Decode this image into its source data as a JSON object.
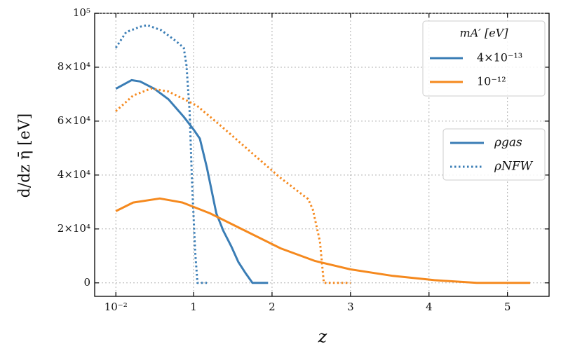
{
  "chart_data": {
    "type": "line",
    "x_label": "z",
    "y_label": "d/dz η̄ [eV]",
    "xlim": [
      -0.26,
      5.53
    ],
    "ylim": [
      -5000,
      100000
    ],
    "xticks": [
      {
        "value": 0.01,
        "label": "10⁻²"
      },
      1,
      2,
      3,
      4,
      5
    ],
    "yticks": [
      0,
      {
        "value": 20000,
        "label": "2×10⁴"
      },
      {
        "value": 40000,
        "label": "4×10⁴"
      },
      {
        "value": 60000,
        "label": "6×10⁴"
      },
      {
        "value": 80000,
        "label": "8×10⁴"
      },
      {
        "value": 100000,
        "label": "10⁵"
      }
    ],
    "grid": true,
    "series": [
      {
        "color": "#3a7db5",
        "dash": "solid",
        "x": [
          0.01,
          0.21,
          0.32,
          0.5,
          0.68,
          0.875,
          1.0,
          1.08,
          1.17,
          1.29,
          1.38,
          1.48,
          1.57,
          1.66,
          1.75,
          1.95
        ],
        "values": [
          72000,
          75200,
          74700,
          72000,
          68100,
          61600,
          56900,
          53500,
          42800,
          25800,
          19300,
          13600,
          7800,
          3700,
          0,
          0
        ]
      },
      {
        "color": "#3a7db5",
        "dash": "dotted",
        "x": [
          0.01,
          0.14,
          0.32,
          0.41,
          0.59,
          0.77,
          0.875,
          0.91,
          0.95,
          0.98,
          1.02,
          1.05,
          1.17
        ],
        "values": [
          87200,
          93000,
          95000,
          95600,
          93700,
          89800,
          87200,
          80700,
          63700,
          37600,
          11500,
          0,
          0
        ]
      },
      {
        "color": "#f5891e",
        "dash": "solid",
        "x": [
          0.01,
          0.23,
          0.57,
          0.86,
          1.21,
          1.66,
          2.11,
          2.55,
          3.0,
          3.54,
          4.07,
          4.61,
          5.29
        ],
        "values": [
          26600,
          29800,
          31300,
          29800,
          25800,
          19300,
          12800,
          8100,
          5000,
          2600,
          1000,
          0,
          0
        ]
      },
      {
        "color": "#f5891e",
        "dash": "dotted",
        "x": [
          0.01,
          0.23,
          0.46,
          0.68,
          1.04,
          1.39,
          1.75,
          2.11,
          2.46,
          2.52,
          2.61,
          2.66,
          3.0
        ],
        "values": [
          63700,
          69500,
          72100,
          71000,
          65800,
          57200,
          48000,
          38900,
          31100,
          27200,
          15400,
          0,
          0
        ]
      }
    ],
    "mass_legend": {
      "title": "mA′ [eV]",
      "entries": [
        {
          "label": "4×10⁻¹³",
          "color": "#3a7db5"
        },
        {
          "label": "10⁻¹²",
          "color": "#f5891e"
        }
      ]
    },
    "profile_legend": {
      "color": "#3a7db5",
      "entries": [
        {
          "label": "ρgas",
          "dash": "solid"
        },
        {
          "label": "ρNFW",
          "dash": "dotted"
        }
      ]
    }
  }
}
